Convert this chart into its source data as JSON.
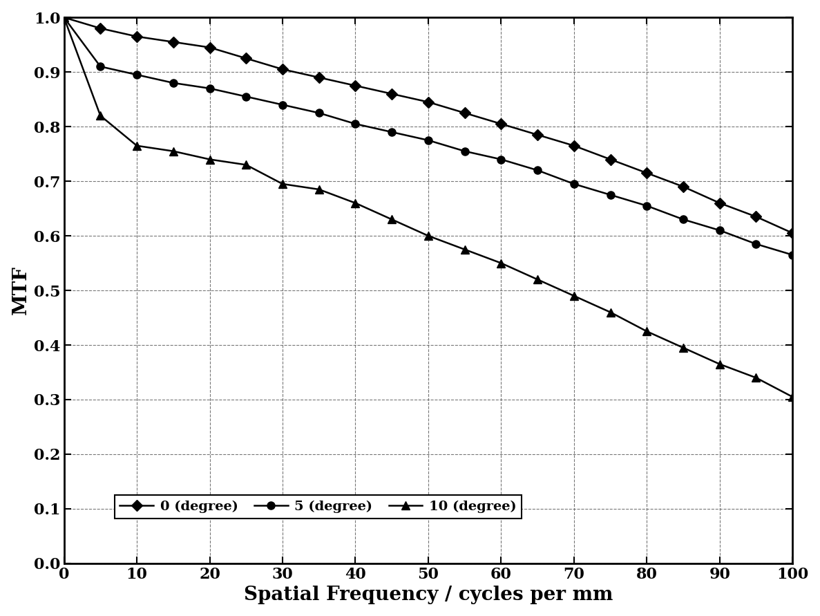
{
  "x": [
    0,
    5,
    10,
    15,
    20,
    25,
    30,
    35,
    40,
    45,
    50,
    55,
    60,
    65,
    70,
    75,
    80,
    85,
    90,
    95,
    100
  ],
  "y_0deg": [
    1.0,
    0.98,
    0.965,
    0.955,
    0.945,
    0.925,
    0.905,
    0.89,
    0.875,
    0.86,
    0.845,
    0.825,
    0.805,
    0.785,
    0.765,
    0.74,
    0.715,
    0.69,
    0.66,
    0.635,
    0.605
  ],
  "y_5deg": [
    1.0,
    0.91,
    0.895,
    0.88,
    0.87,
    0.855,
    0.84,
    0.825,
    0.805,
    0.79,
    0.775,
    0.755,
    0.74,
    0.72,
    0.695,
    0.675,
    0.655,
    0.63,
    0.61,
    0.585,
    0.565
  ],
  "y_10deg": [
    1.0,
    0.82,
    0.765,
    0.755,
    0.74,
    0.73,
    0.695,
    0.685,
    0.66,
    0.63,
    0.6,
    0.575,
    0.55,
    0.52,
    0.49,
    0.46,
    0.425,
    0.395,
    0.365,
    0.34,
    0.305
  ],
  "xlabel": "Spatial Frequency / cycles per mm",
  "ylabel": "MTF",
  "legend_labels": [
    "0 (degree)",
    "5 (degree)",
    "10 (degree)"
  ],
  "xlim": [
    0,
    100
  ],
  "ylim": [
    0.0,
    1.0
  ],
  "xticks": [
    0,
    10,
    20,
    30,
    40,
    50,
    60,
    70,
    80,
    90,
    100
  ],
  "yticks": [
    0.0,
    0.1,
    0.2,
    0.3,
    0.4,
    0.5,
    0.6,
    0.7,
    0.8,
    0.9,
    1.0
  ],
  "line_color": "#000000",
  "background_color": "#ffffff",
  "marker_0": "D",
  "marker_5": "o",
  "marker_10": "^",
  "linewidth": 1.8,
  "markersize": 8,
  "grid_linestyle": "--",
  "grid_linewidth": 0.8,
  "xlabel_fontsize": 20,
  "ylabel_fontsize": 20,
  "tick_labelsize": 16,
  "legend_fontsize": 14,
  "spine_linewidth": 2.0
}
